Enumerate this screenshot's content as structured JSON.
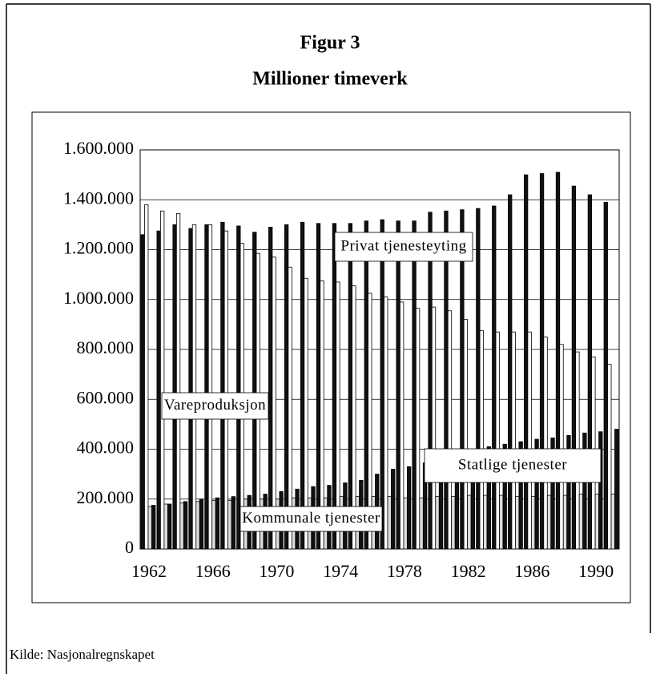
{
  "chart_data": {
    "type": "bar",
    "title": "Figur 3",
    "subtitle": "Millioner timeverk",
    "source": "Kilde: Nasjonalregnskapet",
    "categories": [
      1962,
      null,
      null,
      null,
      1966,
      null,
      null,
      null,
      1970,
      null,
      null,
      null,
      1974,
      null,
      null,
      null,
      1978,
      null,
      null,
      null,
      1982,
      null,
      null,
      null,
      1986,
      null,
      null,
      null,
      1990,
      null
    ],
    "series": [
      {
        "name": "Privat tjenesteyting",
        "color": "#111111",
        "values": [
          1260000,
          1275000,
          1300000,
          1285000,
          1300000,
          1310000,
          1295000,
          1270000,
          1290000,
          1300000,
          1310000,
          1305000,
          1305000,
          1305000,
          1315000,
          1320000,
          1315000,
          1315000,
          1350000,
          1355000,
          1360000,
          1365000,
          1375000,
          1420000,
          1500000,
          1505000,
          1510000,
          1455000,
          1420000,
          1390000
        ]
      },
      {
        "name": "Vareproduksjon",
        "color": "#ffffff",
        "values": [
          1380000,
          1355000,
          1345000,
          1300000,
          1300000,
          1275000,
          1225000,
          1185000,
          1170000,
          1130000,
          1085000,
          1075000,
          1070000,
          1055000,
          1025000,
          1010000,
          990000,
          965000,
          970000,
          955000,
          920000,
          875000,
          870000,
          870000,
          870000,
          850000,
          820000,
          790000,
          770000,
          740000
        ]
      },
      {
        "name": "Statlige tjenester",
        "color": "#dddddd",
        "values": [
          170000,
          180000,
          185000,
          190000,
          195000,
          195000,
          200000,
          200000,
          200000,
          205000,
          205000,
          205000,
          210000,
          210000,
          210000,
          210000,
          205000,
          205000,
          210000,
          210000,
          215000,
          215000,
          215000,
          210000,
          210000,
          215000,
          215000,
          220000,
          220000,
          220000
        ]
      },
      {
        "name": "Kommunale tjenester",
        "color": "#111111",
        "values": [
          175000,
          180000,
          190000,
          200000,
          205000,
          210000,
          215000,
          220000,
          230000,
          240000,
          250000,
          255000,
          265000,
          275000,
          300000,
          320000,
          330000,
          345000,
          360000,
          380000,
          395000,
          410000,
          420000,
          430000,
          440000,
          445000,
          455000,
          465000,
          470000,
          480000
        ]
      }
    ],
    "ylim": [
      0,
      1600000
    ],
    "yticks": [
      0,
      {
        "value": 200000,
        "label": "200.000"
      },
      {
        "value": 400000,
        "label": "400.000"
      },
      {
        "value": 600000,
        "label": "600.000"
      },
      {
        "value": 800000,
        "label": "800.000"
      },
      {
        "value": 1000000,
        "label": "1.000.000"
      },
      {
        "value": 1200000,
        "label": "1.200.000"
      },
      {
        "value": 1400000,
        "label": "1.400.000"
      },
      {
        "value": 1600000,
        "label": "1.600.000"
      }
    ],
    "grid": true
  }
}
